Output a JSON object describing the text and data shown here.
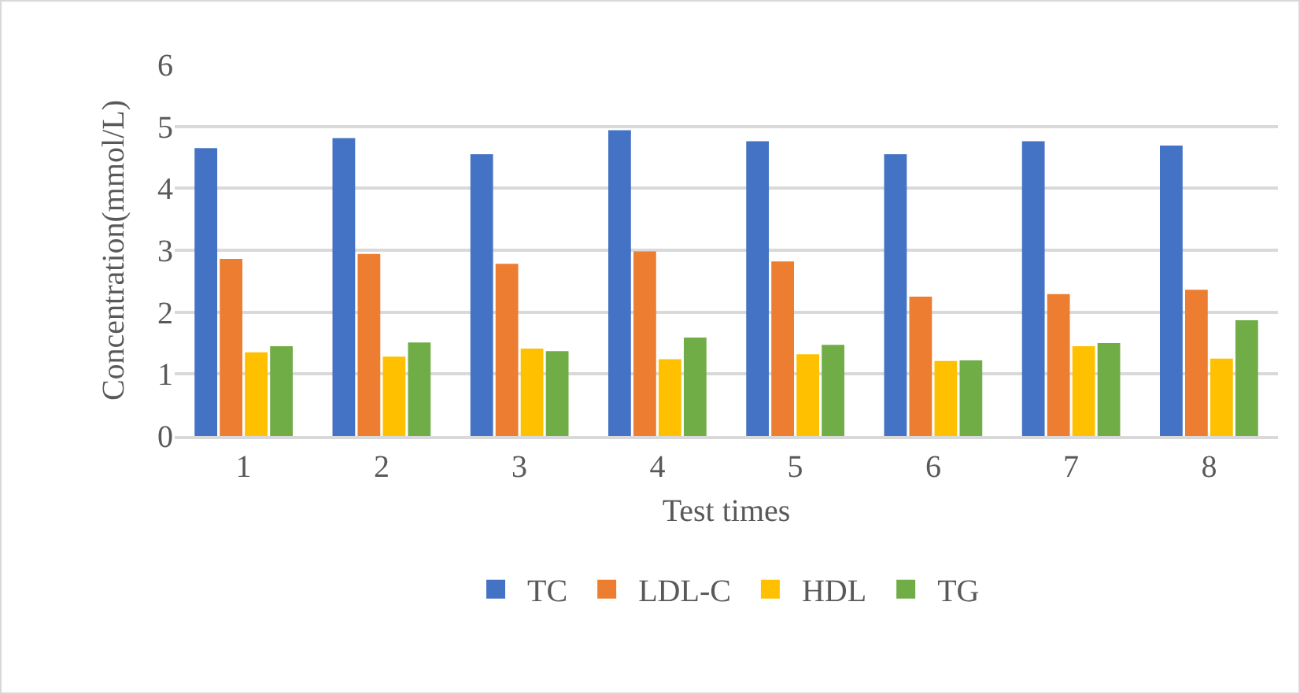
{
  "chart_data": {
    "type": "bar",
    "xlabel": "Test times",
    "ylabel": "Concentration(mmol/L)",
    "categories": [
      "1",
      "2",
      "3",
      "4",
      "5",
      "6",
      "7",
      "8"
    ],
    "series": [
      {
        "name": "TC",
        "color": "#4472c4",
        "values": [
          4.65,
          4.81,
          4.55,
          4.94,
          4.76,
          4.55,
          4.76,
          4.69
        ]
      },
      {
        "name": "LDL-C",
        "color": "#ed7d31",
        "values": [
          2.86,
          2.94,
          2.78,
          2.98,
          2.82,
          2.25,
          2.29,
          2.36
        ]
      },
      {
        "name": "HDL",
        "color": "#ffc000",
        "values": [
          1.35,
          1.28,
          1.41,
          1.24,
          1.32,
          1.21,
          1.45,
          1.25
        ]
      },
      {
        "name": "TG",
        "color": "#70ad47",
        "values": [
          1.45,
          1.51,
          1.37,
          1.59,
          1.47,
          1.22,
          1.5,
          1.87
        ]
      }
    ],
    "ylim": [
      0,
      6
    ],
    "yticks": [
      0,
      1,
      2,
      3,
      4,
      5,
      6
    ],
    "grid": "y",
    "legend": "bottom"
  }
}
